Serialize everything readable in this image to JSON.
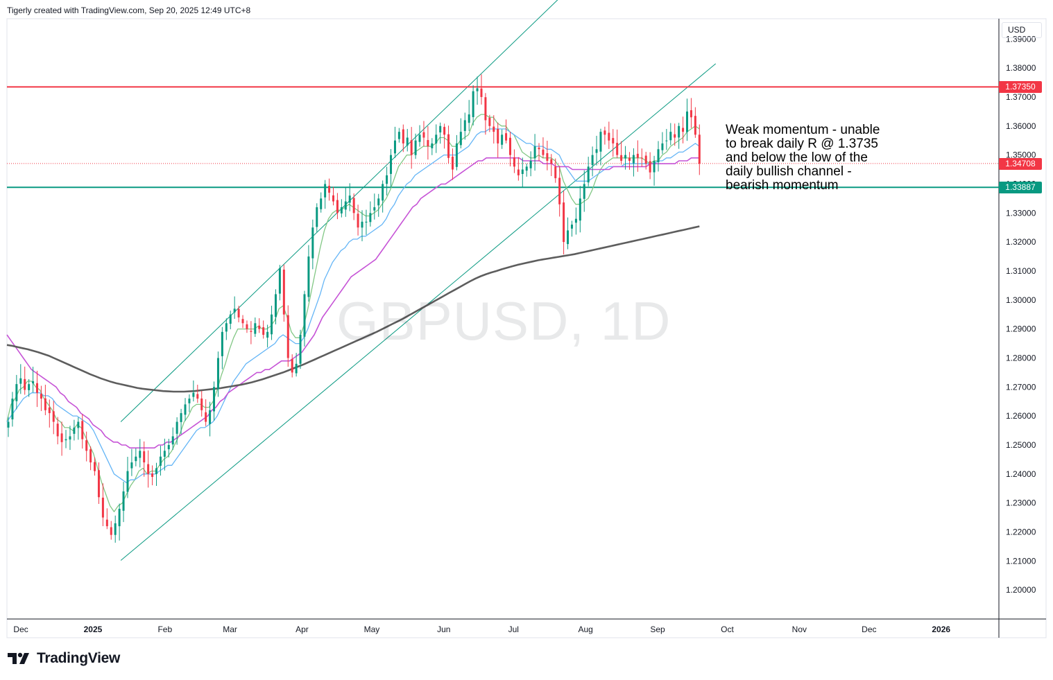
{
  "header": {
    "attribution": "Tigerly created with TradingView.com, Sep 20, 2025 12:49 UTC+8"
  },
  "watermark": "GBPUSD, 1D",
  "annotation": {
    "lines": [
      "Weak momentum - unable",
      "to break daily R @ 1.3735",
      "and below the low of the",
      "daily bullish channel -",
      "bearish momentum"
    ]
  },
  "price_scale": {
    "currency": "USD"
  },
  "brand": {
    "name": "TradingView"
  },
  "colors": {
    "resistance": "#f23645",
    "support": "#089981",
    "current": "#f23645",
    "candle_up": "#089981",
    "candle_down": "#f23645",
    "ema_fast": "#81c784",
    "ema_mid": "#64b5f6",
    "ma_50": "#c653d6",
    "ma_200": "#5d5d5d",
    "channel": "#089981"
  },
  "chart_data": {
    "type": "candlestick",
    "symbol": "GBPUSD",
    "timeframe": "1D",
    "y_ticks": [
      "1.39000",
      "1.38000",
      "1.37000",
      "1.36000",
      "1.35000",
      "1.34000",
      "1.33000",
      "1.32000",
      "1.31000",
      "1.30000",
      "1.29000",
      "1.28000",
      "1.27000",
      "1.26000",
      "1.25000",
      "1.24000",
      "1.23000",
      "1.22000",
      "1.21000",
      "1.20000"
    ],
    "x_ticks": [
      "Dec",
      "2025",
      "Feb",
      "Mar",
      "Apr",
      "May",
      "Jun",
      "Jul",
      "Aug",
      "Sep",
      "Oct",
      "Nov",
      "Dec",
      "2026"
    ],
    "ylim": [
      1.19,
      1.397
    ],
    "price_lines": [
      {
        "name": "resistance",
        "label": "1.37350",
        "value": 1.3735
      },
      {
        "name": "current",
        "label": "1.34708",
        "value": 1.34708
      },
      {
        "name": "support",
        "label": "1.33887",
        "value": 1.33887
      }
    ],
    "closes": [
      1.258,
      1.266,
      1.271,
      1.273,
      1.269,
      1.271,
      1.272,
      1.268,
      1.266,
      1.262,
      1.261,
      1.258,
      1.253,
      1.251,
      1.252,
      1.253,
      1.256,
      1.258,
      1.252,
      1.248,
      1.244,
      1.241,
      1.232,
      1.225,
      1.222,
      1.219,
      1.223,
      1.228,
      1.234,
      1.241,
      1.244,
      1.246,
      1.248,
      1.244,
      1.24,
      1.239,
      1.242,
      1.246,
      1.248,
      1.25,
      1.253,
      1.258,
      1.261,
      1.264,
      1.266,
      1.268,
      1.266,
      1.262,
      1.258,
      1.262,
      1.27,
      1.28,
      1.289,
      1.292,
      1.295,
      1.297,
      1.294,
      1.292,
      1.29,
      1.289,
      1.292,
      1.29,
      1.288,
      1.289,
      1.295,
      1.302,
      1.311,
      1.295,
      1.28,
      1.275,
      1.278,
      1.288,
      1.302,
      1.315,
      1.325,
      1.332,
      1.335,
      1.34,
      1.337,
      1.334,
      1.33,
      1.332,
      1.334,
      1.336,
      1.33,
      1.325,
      1.327,
      1.327,
      1.33,
      1.332,
      1.335,
      1.34,
      1.343,
      1.35,
      1.355,
      1.358,
      1.354,
      1.356,
      1.35,
      1.355,
      1.357,
      1.356,
      1.353,
      1.354,
      1.357,
      1.36,
      1.357,
      1.349,
      1.345,
      1.354,
      1.358,
      1.362,
      1.364,
      1.372,
      1.373,
      1.37,
      1.362,
      1.36,
      1.358,
      1.354,
      1.357,
      1.355,
      1.35,
      1.346,
      1.343,
      1.345,
      1.346,
      1.348,
      1.353,
      1.352,
      1.35,
      1.348,
      1.347,
      1.342,
      1.333,
      1.32,
      1.324,
      1.326,
      1.328,
      1.335,
      1.34,
      1.346,
      1.35,
      1.352,
      1.358,
      1.357,
      1.355,
      1.354,
      1.35,
      1.348,
      1.35,
      1.348,
      1.35,
      1.349,
      1.349,
      1.347,
      1.344,
      1.348,
      1.352,
      1.354,
      1.355,
      1.358,
      1.356,
      1.36,
      1.358,
      1.365,
      1.363,
      1.357,
      1.347
    ],
    "series": [
      {
        "name": "EMA 10",
        "values": [
          1.258,
          1.264,
          1.266,
          1.269,
          1.27,
          1.272,
          1.272,
          1.27,
          1.269,
          1.266,
          1.264,
          1.262,
          1.259,
          1.258,
          1.256,
          1.256,
          1.255,
          1.257,
          1.256,
          1.253,
          1.25,
          1.247,
          1.242,
          1.237,
          1.233,
          1.229,
          1.227,
          1.229,
          1.23,
          1.233,
          1.236,
          1.238,
          1.241,
          1.242,
          1.24,
          1.241,
          1.241,
          1.243,
          1.245,
          1.246,
          1.248,
          1.251,
          1.254,
          1.258,
          1.26,
          1.263,
          1.264,
          1.264,
          1.263,
          1.263,
          1.265,
          1.269,
          1.274,
          1.278,
          1.283,
          1.287,
          1.29,
          1.29,
          1.29,
          1.29,
          1.29,
          1.291,
          1.29,
          1.29,
          1.291,
          1.293,
          1.297,
          1.298,
          1.294,
          1.289,
          1.287,
          1.287,
          1.291,
          1.297,
          1.304,
          1.311,
          1.318,
          1.324,
          1.328,
          1.33,
          1.331,
          1.331,
          1.332,
          1.333,
          1.332,
          1.331,
          1.33,
          1.329,
          1.329,
          1.33,
          1.331,
          1.333,
          1.335,
          1.338,
          1.342,
          1.346,
          1.348,
          1.35,
          1.35,
          1.351,
          1.352,
          1.353,
          1.353,
          1.353,
          1.354,
          1.356,
          1.356,
          1.355,
          1.353,
          1.353,
          1.355,
          1.356,
          1.357,
          1.361,
          1.363,
          1.364,
          1.364,
          1.363,
          1.363,
          1.361,
          1.36,
          1.36,
          1.358,
          1.357,
          1.354,
          1.351,
          1.35,
          1.349,
          1.349,
          1.35,
          1.349,
          1.349,
          1.349,
          1.348,
          1.346,
          1.341,
          1.338,
          1.335,
          1.333,
          1.333,
          1.334,
          1.335,
          1.338,
          1.342,
          1.345,
          1.347,
          1.348,
          1.349,
          1.349,
          1.349,
          1.349,
          1.349,
          1.349,
          1.349,
          1.349,
          1.348,
          1.347,
          1.348,
          1.348,
          1.35,
          1.351,
          1.353,
          1.354,
          1.355,
          1.356,
          1.358,
          1.359,
          1.36,
          1.359
        ]
      },
      {
        "name": "EMA 20",
        "values": [
          1.258,
          1.26,
          1.262,
          1.264,
          1.266,
          1.267,
          1.268,
          1.268,
          1.268,
          1.267,
          1.267,
          1.266,
          1.264,
          1.263,
          1.262,
          1.261,
          1.26,
          1.26,
          1.259,
          1.258,
          1.257,
          1.255,
          1.252,
          1.249,
          1.246,
          1.243,
          1.24,
          1.239,
          1.238,
          1.237,
          1.238,
          1.238,
          1.239,
          1.24,
          1.24,
          1.24,
          1.24,
          1.241,
          1.242,
          1.243,
          1.243,
          1.245,
          1.247,
          1.249,
          1.251,
          1.253,
          1.255,
          1.256,
          1.256,
          1.257,
          1.258,
          1.26,
          1.263,
          1.266,
          1.269,
          1.272,
          1.274,
          1.276,
          1.278,
          1.279,
          1.28,
          1.281,
          1.282,
          1.283,
          1.284,
          1.285,
          1.287,
          1.288,
          1.287,
          1.286,
          1.285,
          1.285,
          1.287,
          1.29,
          1.294,
          1.298,
          1.302,
          1.307,
          1.31,
          1.313,
          1.315,
          1.317,
          1.318,
          1.32,
          1.321,
          1.321,
          1.322,
          1.322,
          1.323,
          1.324,
          1.325,
          1.326,
          1.328,
          1.331,
          1.333,
          1.336,
          1.338,
          1.34,
          1.341,
          1.343,
          1.344,
          1.345,
          1.346,
          1.347,
          1.348,
          1.349,
          1.35,
          1.35,
          1.35,
          1.35,
          1.351,
          1.352,
          1.353,
          1.355,
          1.357,
          1.358,
          1.358,
          1.359,
          1.359,
          1.359,
          1.359,
          1.359,
          1.358,
          1.357,
          1.356,
          1.355,
          1.354,
          1.354,
          1.353,
          1.353,
          1.353,
          1.352,
          1.352,
          1.351,
          1.35,
          1.347,
          1.345,
          1.343,
          1.341,
          1.341,
          1.341,
          1.341,
          1.342,
          1.343,
          1.344,
          1.345,
          1.346,
          1.346,
          1.346,
          1.346,
          1.347,
          1.347,
          1.347,
          1.347,
          1.347,
          1.347,
          1.347,
          1.347,
          1.348,
          1.348,
          1.349,
          1.349,
          1.35,
          1.351,
          1.351,
          1.352,
          1.353,
          1.354,
          1.353
        ]
      },
      {
        "name": "MA 50",
        "values": [
          1.288,
          1.286,
          1.284,
          1.282,
          1.28,
          1.278,
          1.276,
          1.275,
          1.274,
          1.273,
          1.272,
          1.271,
          1.27,
          1.268,
          1.267,
          1.265,
          1.264,
          1.263,
          1.261,
          1.26,
          1.259,
          1.257,
          1.256,
          1.255,
          1.253,
          1.252,
          1.251,
          1.251,
          1.25,
          1.25,
          1.249,
          1.249,
          1.249,
          1.249,
          1.249,
          1.249,
          1.249,
          1.25,
          1.25,
          1.251,
          1.251,
          1.252,
          1.253,
          1.254,
          1.255,
          1.256,
          1.257,
          1.258,
          1.259,
          1.26,
          1.262,
          1.263,
          1.265,
          1.266,
          1.268,
          1.269,
          1.27,
          1.271,
          1.272,
          1.273,
          1.274,
          1.275,
          1.275,
          1.276,
          1.276,
          1.277,
          1.278,
          1.279,
          1.279,
          1.279,
          1.28,
          1.281,
          1.282,
          1.284,
          1.286,
          1.288,
          1.291,
          1.294,
          1.296,
          1.298,
          1.3,
          1.302,
          1.304,
          1.306,
          1.308,
          1.309,
          1.31,
          1.311,
          1.312,
          1.313,
          1.314,
          1.316,
          1.318,
          1.32,
          1.322,
          1.324,
          1.326,
          1.328,
          1.33,
          1.332,
          1.333,
          1.335,
          1.336,
          1.337,
          1.338,
          1.339,
          1.34,
          1.34,
          1.341,
          1.342,
          1.343,
          1.344,
          1.345,
          1.346,
          1.347,
          1.348,
          1.348,
          1.349,
          1.349,
          1.349,
          1.349,
          1.349,
          1.349,
          1.349,
          1.349,
          1.349,
          1.348,
          1.348,
          1.348,
          1.348,
          1.348,
          1.347,
          1.347,
          1.347,
          1.346,
          1.346,
          1.346,
          1.346,
          1.345,
          1.345,
          1.345,
          1.345,
          1.345,
          1.345,
          1.345,
          1.345,
          1.345,
          1.345,
          1.346,
          1.346,
          1.346,
          1.346,
          1.346,
          1.346,
          1.346,
          1.346,
          1.346,
          1.347,
          1.347,
          1.347,
          1.347,
          1.347,
          1.347,
          1.347,
          1.348,
          1.348,
          1.348,
          1.349,
          1.349,
          1.349
        ]
      },
      {
        "name": "MA 200",
        "values": [
          1.2845,
          1.2842,
          1.2838,
          1.2834,
          1.283,
          1.2825,
          1.282,
          1.2814,
          1.2808,
          1.28,
          1.2792,
          1.2784,
          1.2776,
          1.2768,
          1.276,
          1.2752,
          1.2744,
          1.2737,
          1.273,
          1.2724,
          1.2718,
          1.2713,
          1.2709,
          1.2705,
          1.2701,
          1.2697,
          1.2694,
          1.2692,
          1.269,
          1.2688,
          1.2686,
          1.2685,
          1.2684,
          1.2684,
          1.2684,
          1.2685,
          1.2686,
          1.2688,
          1.269,
          1.2692,
          1.2694,
          1.2696,
          1.2699,
          1.2702,
          1.2705,
          1.2708,
          1.2712,
          1.2716,
          1.2721,
          1.2726,
          1.2732,
          1.2738,
          1.2744,
          1.275,
          1.2757,
          1.2764,
          1.2771,
          1.2778,
          1.2786,
          1.2794,
          1.2802,
          1.281,
          1.2818,
          1.2826,
          1.2834,
          1.2842,
          1.285,
          1.2858,
          1.2866,
          1.2874,
          1.2882,
          1.289,
          1.2899,
          1.2908,
          1.2917,
          1.2926,
          1.2935,
          1.2945,
          1.2955,
          1.2965,
          1.2975,
          1.2985,
          1.2995,
          1.3005,
          1.3015,
          1.3025,
          1.3035,
          1.3045,
          1.3055,
          1.3065,
          1.3074,
          1.3082,
          1.3089,
          1.3095,
          1.31,
          1.3106,
          1.3111,
          1.3116,
          1.3121,
          1.3125,
          1.3129,
          1.3133,
          1.3137,
          1.314,
          1.3143,
          1.3146,
          1.3149,
          1.3152,
          1.3155,
          1.3158,
          1.3162,
          1.3166,
          1.317,
          1.3174,
          1.3178,
          1.3182,
          1.3186,
          1.319,
          1.3194,
          1.3198,
          1.3202,
          1.3206,
          1.321,
          1.3214,
          1.3218,
          1.3222,
          1.3226,
          1.323,
          1.3234,
          1.3238,
          1.3242,
          1.3246,
          1.325,
          1.3254
        ]
      }
    ],
    "trend_channel": {
      "upper_start": [
        "2025-01-13",
        1.258
      ],
      "upper_end": [
        "2025-07-28",
        1.4097
      ],
      "lower_start": [
        "2025-01-13",
        1.2102
      ],
      "lower_end": [
        "2025-09-26",
        1.3815
      ]
    }
  }
}
